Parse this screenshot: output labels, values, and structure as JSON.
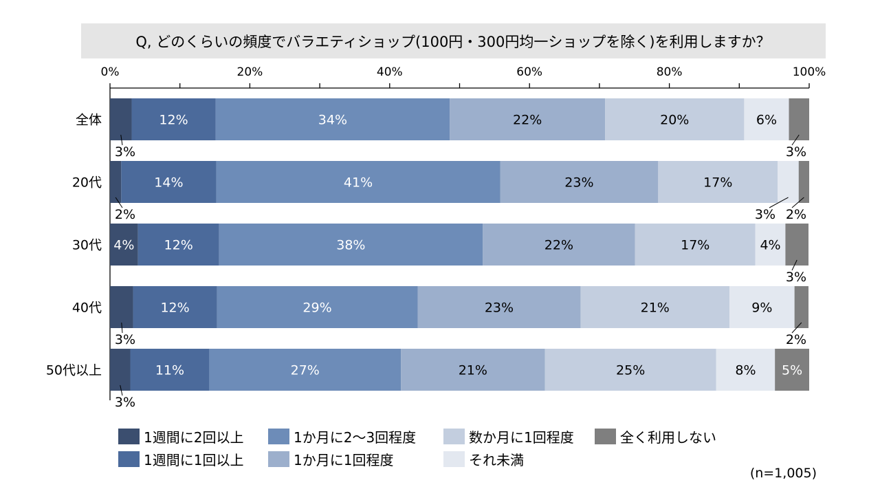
{
  "chart_data": {
    "type": "bar",
    "orientation": "horizontal-stacked-100",
    "title": "Q, どのくらいの頻度でバラエティショップ(100円・300円均一ショップを除く)を利用しますか？",
    "note": "(n=1,005)",
    "xlim": [
      0,
      100
    ],
    "x_ticks": [
      "0%",
      "20%",
      "40%",
      "60%",
      "80%",
      "100%"
    ],
    "legend_position": "bottom",
    "categories": [
      "全体",
      "20代",
      "30代",
      "40代",
      "50代以上"
    ],
    "series": [
      {
        "name": "1週間に2回以上",
        "color": "#3b4e6f",
        "values": [
          3.1,
          1.6,
          4.0,
          3.3,
          2.9
        ],
        "labels": [
          "3%",
          "2%",
          "4%",
          "3%",
          "3%"
        ]
      },
      {
        "name": "1週間に1回以上",
        "color": "#4b6a9b",
        "values": [
          12.0,
          13.6,
          11.6,
          12.0,
          11.3
        ],
        "labels": [
          "12%",
          "14%",
          "12%",
          "12%",
          "11%"
        ]
      },
      {
        "name": "1か月に2〜3回程度",
        "color": "#6d8cb8",
        "values": [
          33.5,
          40.6,
          37.7,
          28.7,
          27.4
        ],
        "labels": [
          "34%",
          "41%",
          "38%",
          "29%",
          "27%"
        ]
      },
      {
        "name": "1か月に1回程度",
        "color": "#9cafcc",
        "values": [
          22.2,
          22.6,
          21.8,
          23.3,
          20.6
        ],
        "labels": [
          "22%",
          "23%",
          "22%",
          "23%",
          "21%"
        ]
      },
      {
        "name": "数か月に1回程度",
        "color": "#c3cedf",
        "values": [
          19.9,
          17.1,
          17.2,
          21.3,
          24.5
        ],
        "labels": [
          "20%",
          "17%",
          "17%",
          "21%",
          "25%"
        ]
      },
      {
        "name": "それ未満",
        "color": "#e3e8f0",
        "values": [
          6.4,
          3.0,
          4.3,
          9.3,
          8.4
        ],
        "labels": [
          "6%",
          "3%",
          "4%",
          "9%",
          "8%"
        ]
      },
      {
        "name": "全く利用しない",
        "color": "#7f7f7f",
        "values": [
          2.9,
          1.5,
          3.3,
          2.0,
          4.9
        ],
        "labels": [
          "3%",
          "2%",
          "3%",
          "2%",
          "5%"
        ]
      }
    ]
  }
}
